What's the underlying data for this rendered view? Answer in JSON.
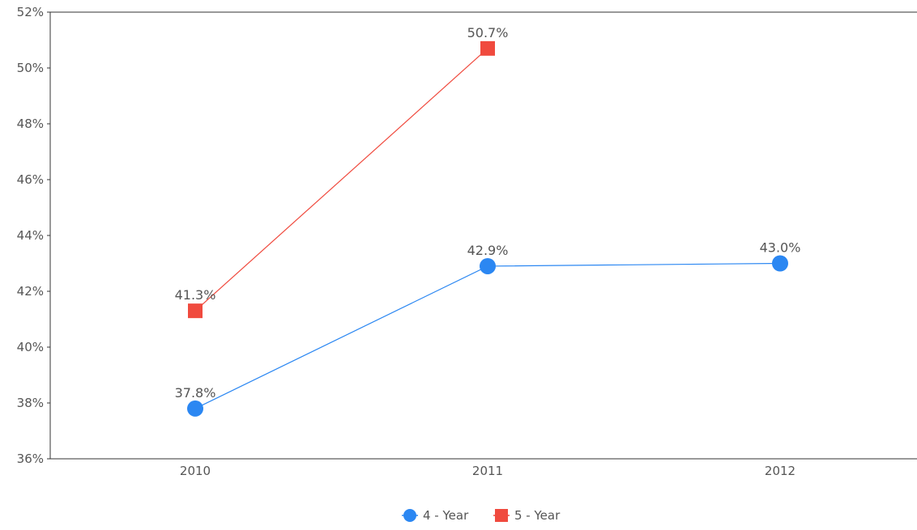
{
  "chart_data": {
    "type": "line",
    "title": "",
    "xlabel": "",
    "ylabel": "",
    "categories": [
      "2010",
      "2011",
      "2012"
    ],
    "ylim": [
      36,
      52
    ],
    "y_ticks": [
      36,
      38,
      40,
      42,
      44,
      46,
      48,
      50,
      52
    ],
    "y_tick_labels": [
      "36%",
      "38%",
      "40%",
      "42%",
      "44%",
      "46%",
      "48%",
      "50%",
      "52%"
    ],
    "grid": false,
    "legend_position": "bottom-center",
    "series": [
      {
        "name": "4 - Year",
        "marker": "circle",
        "color": "#2b87f2",
        "values": [
          37.8,
          42.9,
          43.0
        ],
        "labels": [
          "37.8%",
          "42.9%",
          "43.0%"
        ]
      },
      {
        "name": "5 - Year",
        "marker": "square",
        "color": "#f04a3e",
        "values": [
          41.3,
          50.7,
          null
        ],
        "labels": [
          "41.3%",
          "50.7%",
          null
        ]
      }
    ]
  }
}
